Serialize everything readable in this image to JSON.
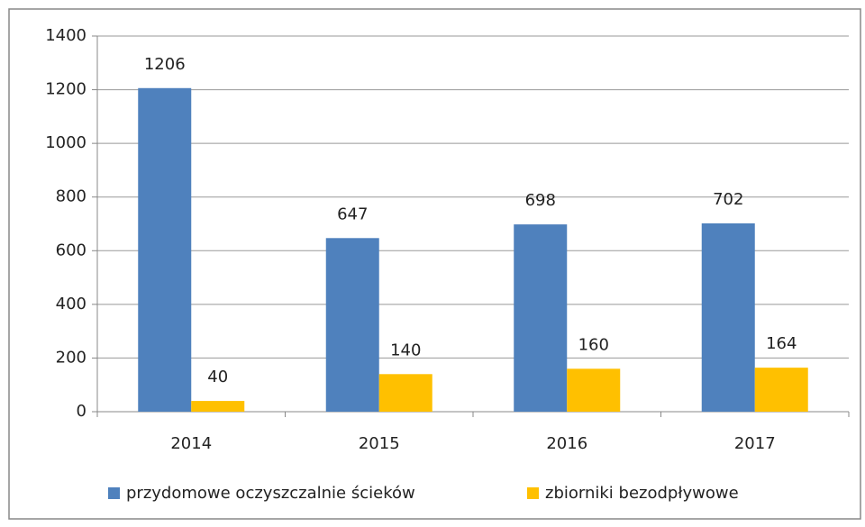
{
  "chart_data": {
    "type": "bar",
    "categories": [
      "2014",
      "2015",
      "2016",
      "2017"
    ],
    "series": [
      {
        "name": "przydomowe oczyszczalnie ścieków",
        "color": "#4f81bd",
        "values": [
          1206,
          647,
          698,
          702
        ]
      },
      {
        "name": "zbiorniki bezodpływowe",
        "color": "#ffc000",
        "values": [
          40,
          140,
          160,
          164
        ]
      }
    ],
    "ylim": [
      0,
      1400
    ],
    "yticks": [
      0,
      200,
      400,
      600,
      800,
      1000,
      1200,
      1400
    ],
    "grid": true,
    "legend": "bottom"
  }
}
